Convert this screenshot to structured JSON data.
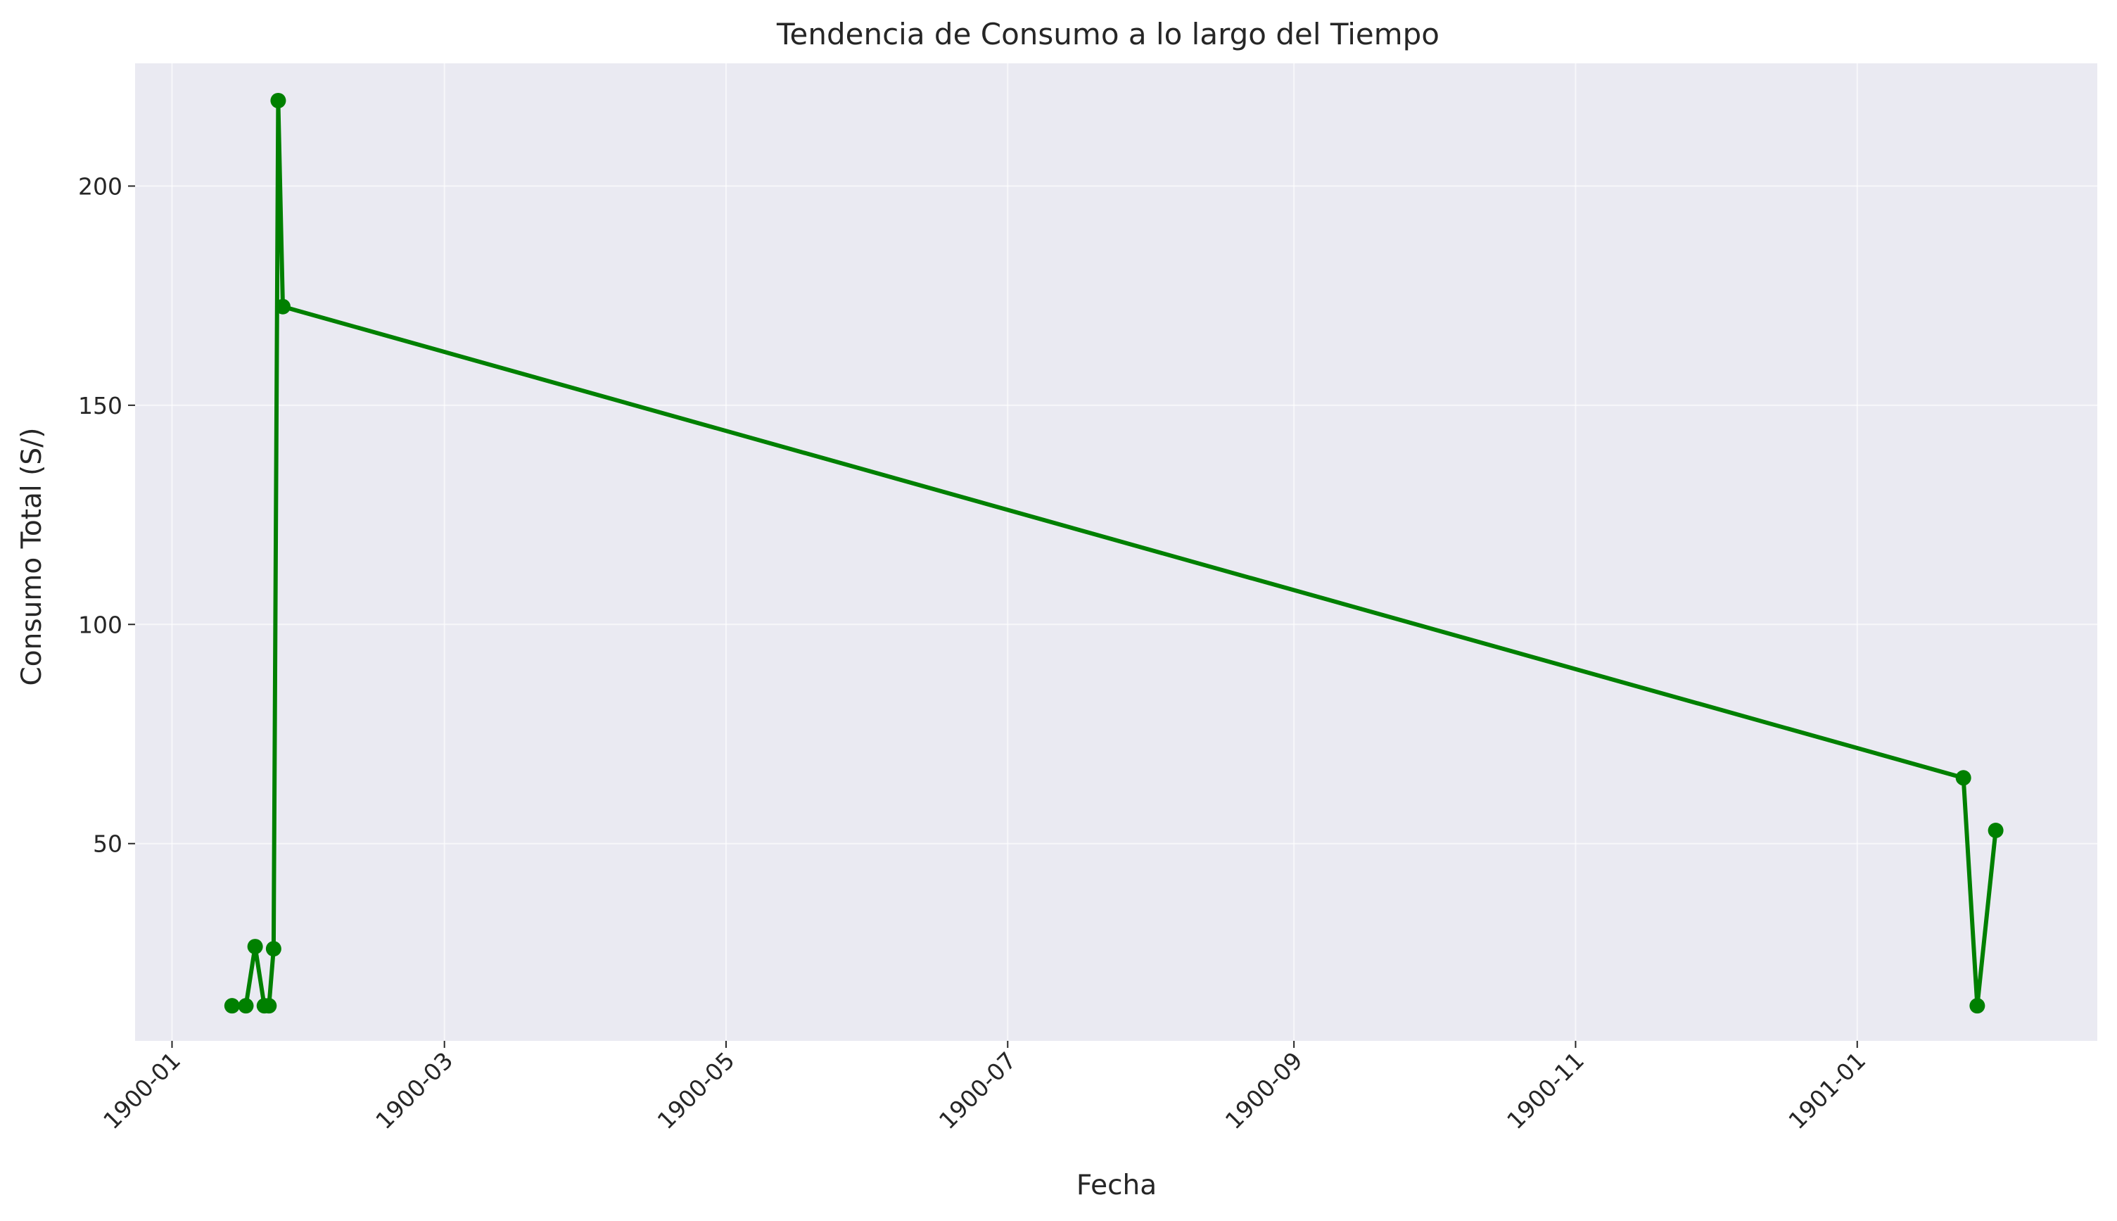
{
  "chart_data": {
    "type": "line",
    "title": "Tendencia de Consumo a lo largo del Tiempo",
    "xlabel": "Fecha",
    "ylabel": "Consumo Total (S/)",
    "x_axis_type": "date",
    "xlim": [
      "1899-12-24",
      "1901-02-22"
    ],
    "ylim": [
      5,
      228
    ],
    "x_ticks": [
      "1900-01-01",
      "1900-03-01",
      "1900-05-01",
      "1900-07-01",
      "1900-09-01",
      "1900-11-01",
      "1901-01-01"
    ],
    "x_tick_labels": [
      "1900-01",
      "1900-03",
      "1900-05",
      "1900-07",
      "1900-09",
      "1900-11",
      "1901-01"
    ],
    "y_ticks": [
      50,
      100,
      150,
      200
    ],
    "y_tick_labels": [
      "50",
      "100",
      "150",
      "200"
    ],
    "grid": true,
    "background_color": "#eaeaf2",
    "grid_color": "#ffffff",
    "line_color": "#008000",
    "marker": "circle",
    "series": [
      {
        "x": [
          "1900-01-14",
          "1900-01-17",
          "1900-01-19",
          "1900-01-21",
          "1900-01-22",
          "1900-01-23",
          "1900-01-24",
          "1900-01-25",
          "1901-01-24",
          "1901-01-27",
          "1901-01-31"
        ],
        "y": [
          13,
          13,
          26.5,
          13,
          13,
          26,
          219.5,
          172.5,
          65,
          13,
          53
        ]
      }
    ]
  }
}
